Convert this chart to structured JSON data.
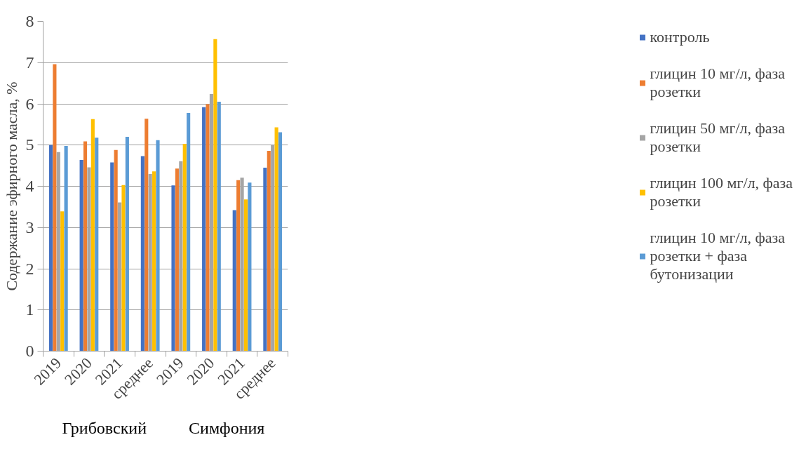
{
  "chart_data": {
    "type": "bar",
    "ylabel": "Содержание эфирного масла, %",
    "categories": [
      "2019",
      "2020",
      "2021",
      "среднее",
      "2019",
      "2020",
      "2021",
      "среднее"
    ],
    "annotations": [
      "Грибовский",
      "Симфония"
    ],
    "ylim": [
      0,
      8
    ],
    "yticks": [
      0,
      1,
      2,
      3,
      4,
      5,
      6,
      7,
      8
    ],
    "grid": "y",
    "legend": "right",
    "series": [
      {
        "name": "контроль",
        "color": "#4472c4",
        "values": [
          5.0,
          4.64,
          4.58,
          4.73,
          4.02,
          5.92,
          3.42,
          4.45
        ]
      },
      {
        "name": "глицин 10 мг/л, фаза розетки",
        "color": "#ed7d31",
        "values": [
          6.96,
          5.09,
          4.88,
          5.64,
          4.43,
          5.99,
          4.15,
          4.86
        ]
      },
      {
        "name": "глицин 50 мг/л, фаза розетки",
        "color": "#a5a5a5",
        "values": [
          4.83,
          4.46,
          3.61,
          4.3,
          4.61,
          6.24,
          4.21,
          5.01
        ]
      },
      {
        "name": "глицин 100 мг/л, фаза розетки",
        "color": "#ffc000",
        "values": [
          3.39,
          5.63,
          4.03,
          4.36,
          5.03,
          7.57,
          3.68,
          5.43
        ]
      },
      {
        "name": "глицин 10 мг/л, фаза розетки + фаза бутонизации",
        "color": "#5b9bd5",
        "values": [
          4.98,
          5.18,
          5.2,
          5.12,
          5.78,
          6.05,
          4.09,
          5.31
        ]
      }
    ]
  }
}
